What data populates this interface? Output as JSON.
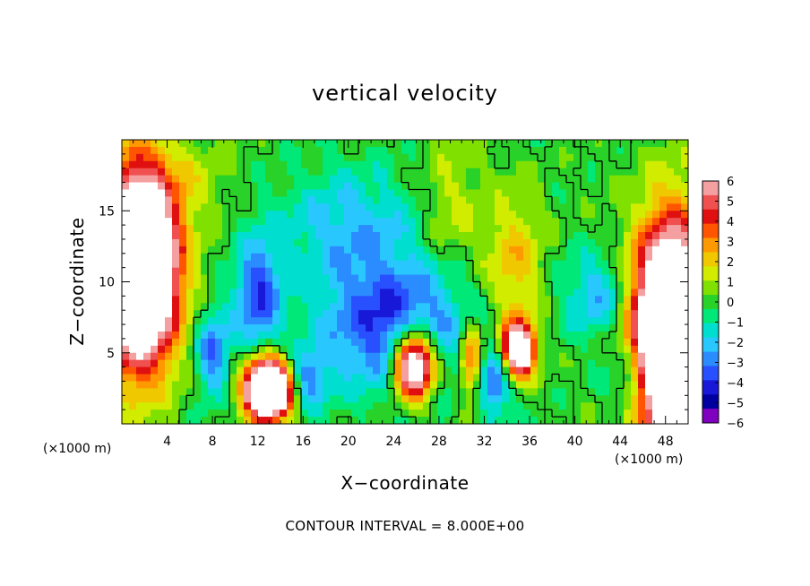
{
  "chart_data": {
    "type": "heatmap",
    "title": "vertical velocity",
    "xlabel": "X−coordinate",
    "ylabel": "Z−coordinate",
    "x_unit_left": "(×1000 m)",
    "x_unit_right": "(×1000 m)",
    "xlim": [
      0,
      50
    ],
    "ylim": [
      0,
      20
    ],
    "x_ticks": [
      4,
      8,
      12,
      16,
      20,
      24,
      28,
      32,
      36,
      40,
      44,
      48
    ],
    "y_ticks": [
      5,
      10,
      15
    ],
    "footer": "CONTOUR INTERVAL = 8.000E+00",
    "colorbar": {
      "labels": [
        "6",
        "5",
        "4",
        "3",
        "2",
        "1",
        "0",
        "−1",
        "−2",
        "−3",
        "−4",
        "−5",
        "−6"
      ],
      "colors": [
        "#f4a0a0",
        "#f05050",
        "#e01010",
        "#ff5500",
        "#ff9900",
        "#f0c800",
        "#d2ec00",
        "#80e000",
        "#28d228",
        "#00e878",
        "#00ded0",
        "#28c8ff",
        "#2b8cff",
        "#2850ff",
        "#1818d8",
        "#0000a0",
        "#8000c0"
      ],
      "ticks": [
        6,
        5,
        4,
        3,
        2,
        1,
        0,
        -1,
        -2,
        -3,
        -4,
        -5,
        -6
      ]
    },
    "features": [
      {
        "kind": "updraft",
        "x": 1.5,
        "z": 11,
        "sx": 3.2,
        "sz": 6.5,
        "amp": 16
      },
      {
        "kind": "updraft",
        "x": 48.5,
        "z": 6,
        "sx": 3.2,
        "sz": 7.5,
        "amp": 16
      },
      {
        "kind": "updraft",
        "x": 13,
        "z": 2.5,
        "sx": 2.0,
        "sz": 2.0,
        "amp": 16
      },
      {
        "kind": "updraft",
        "x": 35,
        "z": 5.2,
        "sx": 1.4,
        "sz": 1.8,
        "amp": 11
      },
      {
        "kind": "updraft",
        "x": 25.8,
        "z": 4.2,
        "sx": 1.8,
        "sz": 2.4,
        "amp": 11
      },
      {
        "kind": "updraft",
        "x": 30.8,
        "z": 4.5,
        "sx": 1.0,
        "sz": 2.5,
        "amp": 4.5
      },
      {
        "kind": "updraft",
        "x": 34.5,
        "z": 11,
        "sx": 2.5,
        "sz": 5.0,
        "amp": 2.5
      },
      {
        "kind": "downdraft",
        "x": 24,
        "z": 7,
        "sx": 6.5,
        "sz": 4.5,
        "amp": -4.5
      },
      {
        "kind": "downdraft",
        "x": 12,
        "z": 9,
        "sx": 2.0,
        "sz": 4.0,
        "amp": -4.0
      },
      {
        "kind": "downdraft",
        "x": 8,
        "z": 5,
        "sx": 1.5,
        "sz": 3.0,
        "amp": -3.5
      },
      {
        "kind": "downdraft",
        "x": 16,
        "z": 3,
        "sx": 2.0,
        "sz": 2.0,
        "amp": -3.5
      },
      {
        "kind": "downdraft",
        "x": 33,
        "z": 3,
        "sx": 1.5,
        "sz": 2.5,
        "amp": -3.5
      },
      {
        "kind": "downdraft",
        "x": 42,
        "z": 9,
        "sx": 3.0,
        "sz": 3.0,
        "amp": -2.5
      },
      {
        "kind": "downdraft",
        "x": 45,
        "z": 3,
        "sx": 2.0,
        "sz": 2.5,
        "amp": -3.0
      },
      {
        "kind": "downdraft",
        "x": 20,
        "z": 14,
        "sx": 6.0,
        "sz": 4.0,
        "amp": -2.2
      },
      {
        "kind": "neutral",
        "x": 29,
        "z": 15,
        "sx": 2.5,
        "sz": 5.0,
        "amp": 1.5
      },
      {
        "kind": "neutral",
        "x": 6,
        "z": 17,
        "sx": 4.0,
        "sz": 3.0,
        "amp": 1.0
      }
    ]
  }
}
